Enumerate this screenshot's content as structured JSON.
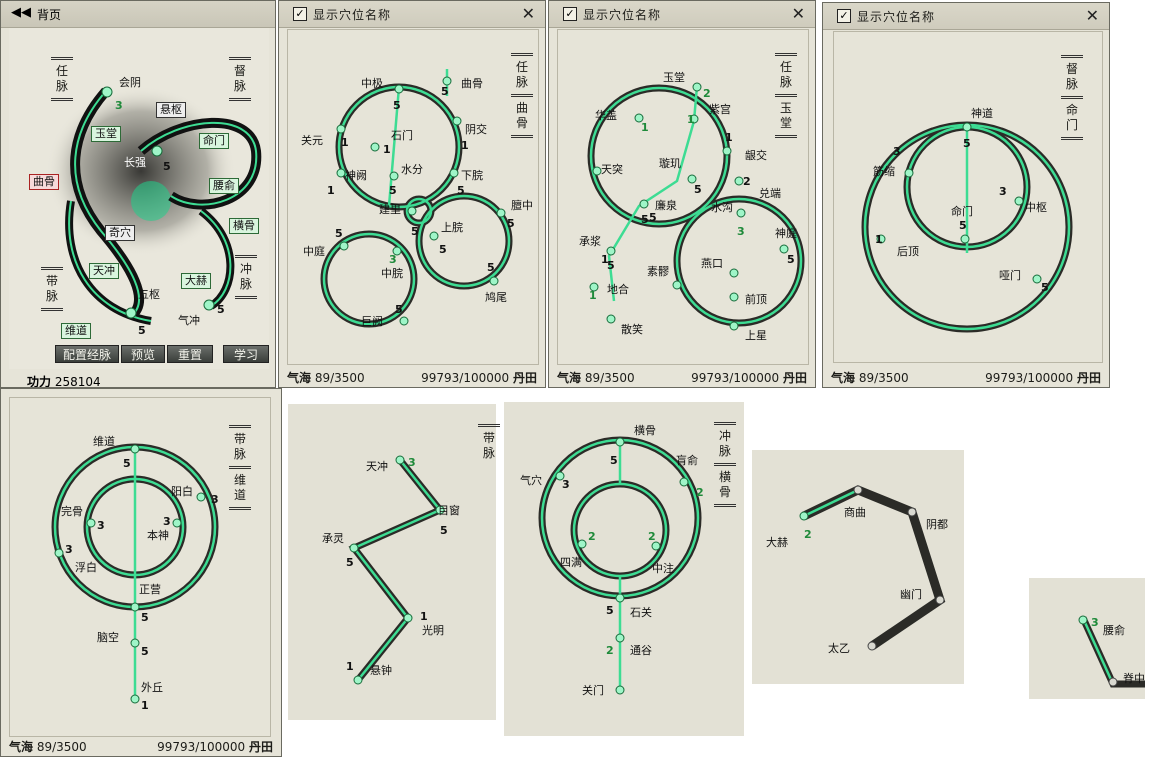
{
  "colors": {
    "meridian": "#34c07a",
    "glow": "#8cf0b8",
    "ink": "#2a2a26",
    "paper": "#e3e1d5"
  },
  "main": {
    "back_label": "背页",
    "tabs": {
      "ren": "任脉",
      "du": "督脉",
      "dai": "带脉",
      "chong": "冲脉"
    },
    "points": {
      "huiyin": "会阴",
      "yutang": "玉堂",
      "xuanshu": "悬枢",
      "mingmen": "命门",
      "changqiang": "长强",
      "qugu": "曲骨",
      "qixue": "奇穴",
      "yaoyu": "腰俞",
      "henggu": "横骨",
      "tianchong": "天冲",
      "dahe": "大赫",
      "wushu": "五枢",
      "weidao": "维道",
      "qichong": "气冲"
    },
    "nums": {
      "n1": "3",
      "n2": "5",
      "n3": "5",
      "n4": "5"
    },
    "buttons": {
      "config": "配置经脉",
      "preview": "预览",
      "reset": "重置",
      "learn": "学习"
    },
    "gongli_label": "功力",
    "gongli_value": "258104"
  },
  "common": {
    "show_names": "显示穴位名称",
    "close": "✕",
    "check": "✓",
    "qihai": "气海",
    "qihai_value": "89/3500",
    "dantian_value": "99793/100000",
    "dantian": "丹田"
  },
  "p2": {
    "tab": "任脉",
    "sub": "曲骨",
    "points": {
      "zhongji": "中极",
      "qugu": "曲骨",
      "guanyuan": "关元",
      "shimen": "石门",
      "yinjiao": "阴交",
      "shenque": "神阙",
      "shuifen": "水分",
      "xiawan": "下脘",
      "jianli": "建里",
      "shangwan": "上脘",
      "zhongting": "中庭",
      "zhongwan": "中脘",
      "jiuwei": "鸠尾",
      "juque": "巨阙",
      "tanzhong": "膻中"
    },
    "nums": [
      "5",
      "5",
      "1",
      "1",
      "1",
      "1",
      "5",
      "5",
      "5",
      "5",
      "5",
      "3",
      "5",
      "5",
      "5"
    ]
  },
  "p3": {
    "tab": "任脉",
    "sub": "玉堂",
    "points": {
      "yutang": "玉堂",
      "huagai": "华盖",
      "zigong": "紫宫",
      "tiantu": "天突",
      "xuanji": "璇玑",
      "yinjiao": "龈交",
      "duiduan": "兑端",
      "lianquan": "廉泉",
      "shuigou": "水沟",
      "chengjiang": "承浆",
      "shenting": "神庭",
      "suliao": "素髎",
      "yankou": "燕口",
      "diheng": "地合",
      "qianding": "前顶",
      "sanxiao": "散笑",
      "shangxing": "上星"
    },
    "nums": [
      "2",
      "1",
      "1",
      "1",
      "5",
      "2",
      "5",
      "5",
      "3",
      "1",
      "1",
      "5",
      "5"
    ]
  },
  "p4": {
    "tab": "督脉",
    "sub": "命门",
    "points": {
      "shendao": "神道",
      "jinsuo": "筋缩",
      "mingmen": "命门",
      "zhongshu": "中枢",
      "houding": "后顶",
      "yamen": "哑门"
    },
    "nums": [
      "5",
      "3",
      "3",
      "5",
      "1",
      "5"
    ]
  },
  "p5": {
    "tab": "带脉",
    "sub": "维道",
    "points": {
      "weidao": "维道",
      "yangbai": "阳白",
      "wangu": "完骨",
      "benshen": "本神",
      "fubai": "浮白",
      "zhengying": "正营",
      "naokong": "脑空",
      "waiqiu": "外丘"
    },
    "nums": [
      "5",
      "3",
      "3",
      "3",
      "3",
      "3",
      "5",
      "5",
      "1"
    ]
  },
  "p6": {
    "points": {
      "tianchong": "天冲",
      "muchuang": "目窗",
      "chengling": "承灵",
      "guangming": "光明",
      "xuanzhong": "悬钟"
    },
    "partial_tab": "带脉",
    "nums": [
      "3",
      "5",
      "5",
      "1",
      "1"
    ]
  },
  "p7": {
    "tab": "冲脉",
    "sub": "横骨",
    "points": {
      "henggu": "横骨",
      "qixue": "气穴",
      "huangshu": "肓俞",
      "siman": "四满",
      "zhongzhu": "中注",
      "shiguan": "石关",
      "tonggu": "通谷",
      "guanmen": "关门"
    },
    "nums": [
      "5",
      "3",
      "2",
      "2",
      "2",
      "5",
      "2"
    ]
  },
  "p8": {
    "points": {
      "dahe": "大赫",
      "shangqu": "商曲",
      "yindu": "阴都",
      "youmen": "幽门",
      "taiyi": "太乙"
    },
    "nums": [
      "2"
    ]
  },
  "p9": {
    "points": {
      "yaoyu": "腰俞",
      "jizhong": "脊中"
    },
    "nums": [
      "3"
    ]
  }
}
